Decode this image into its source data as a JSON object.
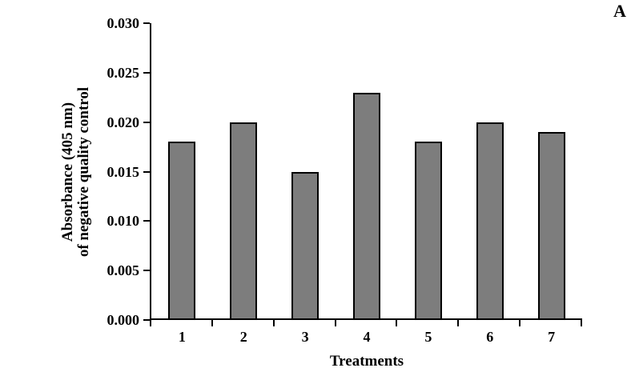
{
  "panel_label": "A",
  "chart_data": {
    "type": "bar",
    "title": "",
    "xlabel": "Treatments",
    "ylabel": "Absorbance (405 nm) of negative quality control",
    "ylabel_lines": [
      "Absorbance (405 nm)",
      "of negative quality control"
    ],
    "categories": [
      "1",
      "2",
      "3",
      "4",
      "5",
      "6",
      "7"
    ],
    "values": [
      0.018,
      0.02,
      0.015,
      0.023,
      0.018,
      0.02,
      0.019
    ],
    "ylim": [
      0,
      0.03
    ],
    "ytick_step": 0.005,
    "ytick_labels": [
      "0.000",
      "0.005",
      "0.010",
      "0.015",
      "0.020",
      "0.025",
      "0.030"
    ],
    "grid": false,
    "legend_position": "none",
    "bar_fill_color": "#7d7d7d",
    "bar_border_color": "#000000",
    "axis_color": "#000000",
    "background_color": "#ffffff"
  }
}
